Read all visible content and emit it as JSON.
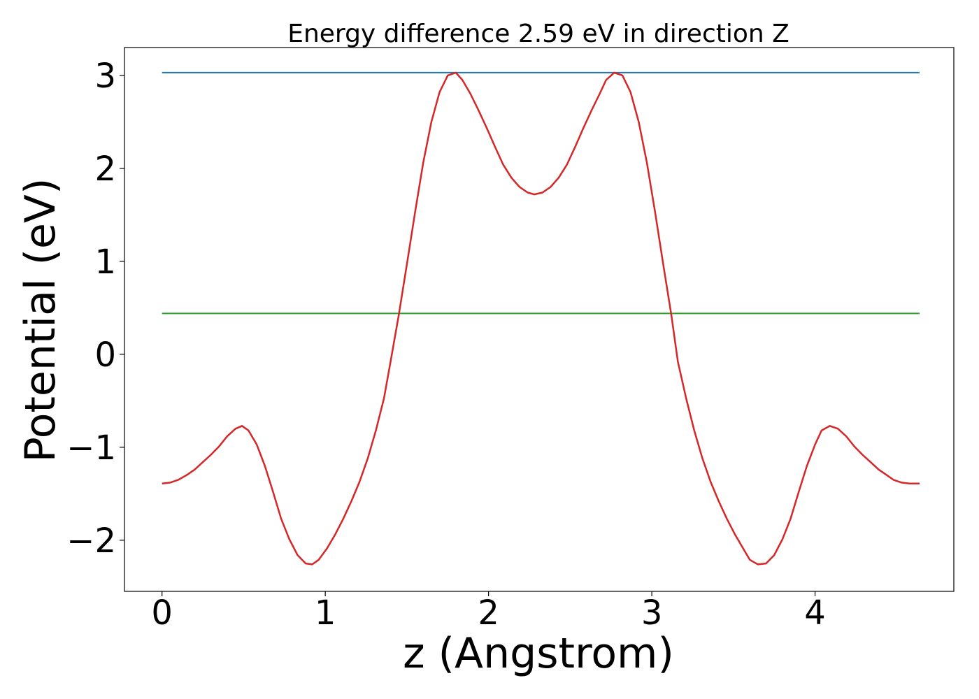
{
  "chart_data": {
    "type": "line",
    "title": "Energy difference 2.59 eV in direction Z",
    "xlabel": "z (Angstrom)",
    "ylabel": "Potential (eV)",
    "xlim": [
      -0.23,
      4.85
    ],
    "ylim": [
      -2.55,
      3.3
    ],
    "xticks": [
      0,
      1,
      2,
      3,
      4
    ],
    "xtick_labels": [
      "0",
      "1",
      "2",
      "3",
      "4"
    ],
    "yticks": [
      -2,
      -1,
      0,
      1,
      2,
      3
    ],
    "ytick_labels": [
      "−2",
      "−1",
      "0",
      "1",
      "2",
      "3"
    ],
    "grid": false,
    "series": [
      {
        "color": "#1f77b4",
        "x": [
          0,
          4.64
        ],
        "y": [
          3.03,
          3.03
        ]
      },
      {
        "color": "#2ca02c",
        "x": [
          0,
          4.64
        ],
        "y": [
          0.44,
          0.44
        ]
      },
      {
        "color": "#d62728",
        "x": [
          0.0,
          0.05,
          0.1,
          0.15,
          0.2,
          0.25,
          0.3,
          0.35,
          0.4,
          0.45,
          0.49,
          0.53,
          0.58,
          0.63,
          0.68,
          0.73,
          0.78,
          0.83,
          0.88,
          0.92,
          0.96,
          1.01,
          1.06,
          1.11,
          1.16,
          1.21,
          1.26,
          1.31,
          1.36,
          1.4,
          1.45,
          1.5,
          1.55,
          1.6,
          1.65,
          1.7,
          1.75,
          1.8,
          1.84,
          1.89,
          1.94,
          1.99,
          2.04,
          2.09,
          2.14,
          2.19,
          2.24,
          2.28,
          2.33,
          2.38,
          2.43,
          2.48,
          2.53,
          2.58,
          2.63,
          2.68,
          2.72,
          2.77,
          2.82,
          2.87,
          2.92,
          2.97,
          3.02,
          3.07,
          3.12,
          3.16,
          3.21,
          3.26,
          3.31,
          3.36,
          3.41,
          3.46,
          3.51,
          3.56,
          3.6,
          3.65,
          3.7,
          3.75,
          3.8,
          3.85,
          3.9,
          3.95,
          4.0,
          4.04,
          4.09,
          4.14,
          4.19,
          4.24,
          4.29,
          4.34,
          4.39,
          4.44,
          4.48,
          4.53,
          4.58,
          4.64
        ],
        "y": [
          -1.39,
          -1.38,
          -1.35,
          -1.3,
          -1.24,
          -1.16,
          -1.08,
          -0.99,
          -0.88,
          -0.8,
          -0.77,
          -0.82,
          -0.97,
          -1.2,
          -1.48,
          -1.77,
          -1.99,
          -2.16,
          -2.25,
          -2.26,
          -2.21,
          -2.09,
          -1.94,
          -1.77,
          -1.58,
          -1.37,
          -1.12,
          -0.82,
          -0.47,
          -0.08,
          0.42,
          0.97,
          1.53,
          2.06,
          2.5,
          2.82,
          3.0,
          3.03,
          2.95,
          2.8,
          2.62,
          2.43,
          2.23,
          2.04,
          1.9,
          1.8,
          1.74,
          1.72,
          1.74,
          1.8,
          1.9,
          2.04,
          2.23,
          2.43,
          2.62,
          2.8,
          2.95,
          3.03,
          3.0,
          2.82,
          2.5,
          2.06,
          1.53,
          0.97,
          0.42,
          -0.08,
          -0.47,
          -0.82,
          -1.12,
          -1.37,
          -1.58,
          -1.77,
          -1.94,
          -2.09,
          -2.21,
          -2.26,
          -2.25,
          -2.16,
          -1.99,
          -1.77,
          -1.48,
          -1.2,
          -0.97,
          -0.82,
          -0.77,
          -0.8,
          -0.88,
          -0.99,
          -1.08,
          -1.16,
          -1.24,
          -1.3,
          -1.35,
          -1.38,
          -1.39,
          -1.39
        ]
      }
    ]
  }
}
